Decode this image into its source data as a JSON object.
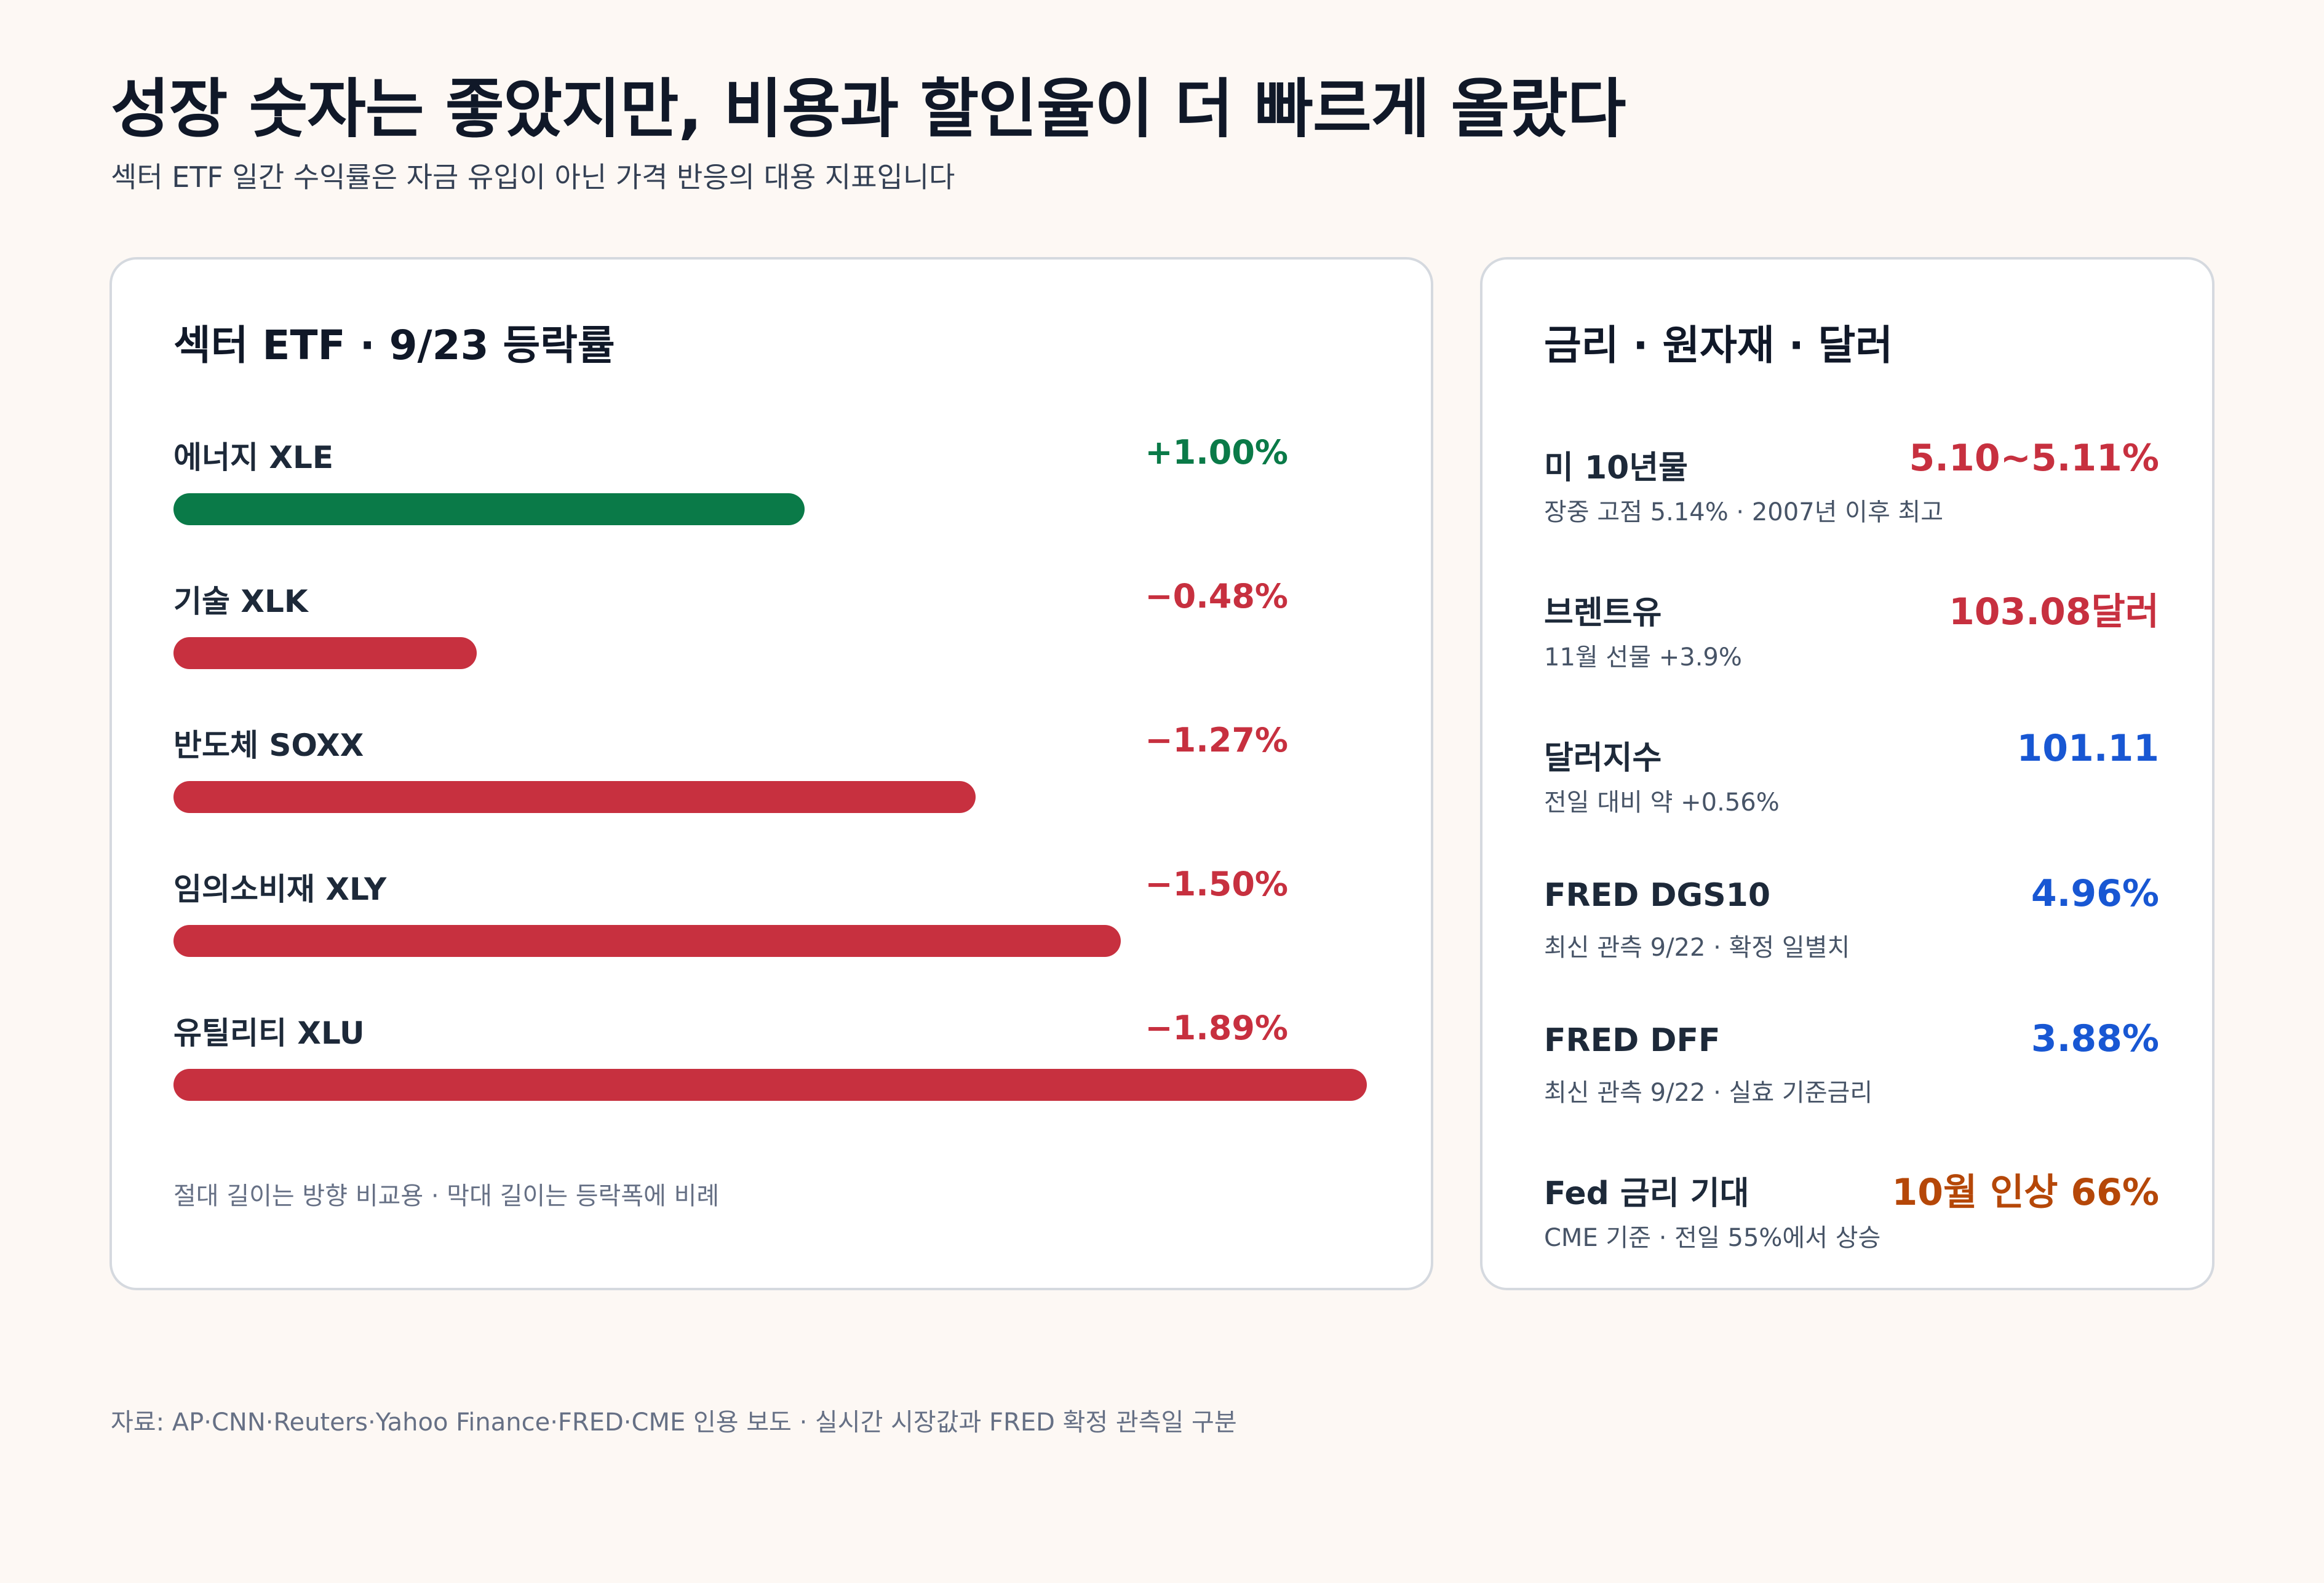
{
  "header": {
    "title": "성장 숫자는 좋았지만, 비용과 할인율이 더 빠르게 올랐다",
    "subtitle": "섹터 ETF 일간 수익률은 자금 유입이 아닌 가격 반응의 대용 지표입니다"
  },
  "colors": {
    "positive": "#0a7a48",
    "negative": "#c7303f",
    "blue": "#1857d3",
    "orange": "#b54708"
  },
  "chart_data": {
    "type": "bar",
    "title": "섹터 ETF · 9/23 등락률",
    "categories": [
      "에너지 XLE",
      "기술 XLK",
      "반도체 SOXX",
      "임의소비재 XLY",
      "유틸리티 XLU"
    ],
    "values": [
      1.0,
      -0.48,
      -1.27,
      -1.5,
      -1.89
    ],
    "value_labels": [
      "+1.00%",
      "−0.48%",
      "−1.27%",
      "−1.50%",
      "−1.89%"
    ],
    "note": "절대 길이는 방향 비교용 · 막대 길이는 등락폭에 비례"
  },
  "metrics": {
    "title": "금리 · 원자재 · 달러",
    "items": [
      {
        "label": "미 10년물",
        "value": "5.10~5.11%",
        "sub": "장중 고점 5.14% · 2007년 이후 최고",
        "color": "#c7303f"
      },
      {
        "label": "브렌트유",
        "value": "103.08달러",
        "sub": "11월 선물 +3.9%",
        "color": "#c7303f"
      },
      {
        "label": "달러지수",
        "value": "101.11",
        "sub": "전일 대비 약 +0.56%",
        "color": "#1857d3"
      },
      {
        "label": "FRED DGS10",
        "value": "4.96%",
        "sub": "최신 관측 9/22 · 확정 일별치",
        "color": "#1857d3"
      },
      {
        "label": "FRED DFF",
        "value": "3.88%",
        "sub": "최신 관측 9/22 · 실효 기준금리",
        "color": "#1857d3"
      },
      {
        "label": "Fed 금리 기대",
        "value": "10월 인상 66%",
        "sub": "CME 기준 · 전일 55%에서 상승",
        "color": "#b54708"
      }
    ]
  },
  "footer": {
    "source": "자료: AP·CNN·Reuters·Yahoo Finance·FRED·CME 인용 보도 · 실시간 시장값과 FRED 확정 관측일 구분"
  }
}
